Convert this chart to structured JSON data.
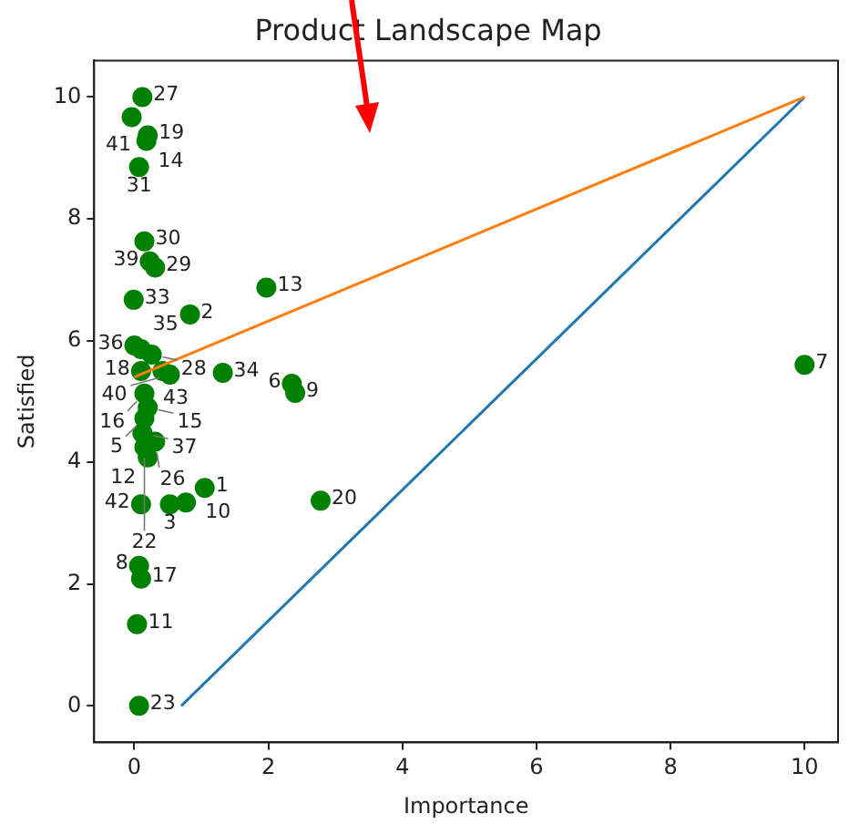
{
  "chart_data": {
    "type": "scatter",
    "title": "Product Landscape Map",
    "xlabel": "Importance",
    "ylabel": "Satisfied",
    "xlim": [
      -0.6,
      10.5
    ],
    "ylim": [
      -0.6,
      10.6
    ],
    "xticks": [
      0,
      2,
      4,
      6,
      8,
      10
    ],
    "yticks": [
      0,
      2,
      4,
      6,
      8,
      10
    ],
    "grid": false,
    "legend": false,
    "marker": "circle",
    "series": [
      {
        "type": "scatter",
        "color": "#008000",
        "x": [
          0.12,
          -0.04,
          0.2,
          0.18,
          0.07,
          0.15,
          0.23,
          0.31,
          -0.01,
          0.83,
          1.97,
          0,
          0.1,
          0.26,
          0.1,
          0.42,
          0.53,
          1.32,
          2.35,
          2.4,
          10,
          0.15,
          0.2,
          0.15,
          0.12,
          0.31,
          0.2,
          0.15,
          0.1,
          0.53,
          0.77,
          1.05,
          2.78,
          0.07,
          0.1,
          0.04,
          0.07
        ],
        "values": [
          10.0,
          9.67,
          9.37,
          9.28,
          8.85,
          7.63,
          7.3,
          7.2,
          6.67,
          6.43,
          6.87,
          5.92,
          5.86,
          5.77,
          5.5,
          5.5,
          5.44,
          5.47,
          5.29,
          5.14,
          5.6,
          5.13,
          4.9,
          4.72,
          4.48,
          4.34,
          4.08,
          4.25,
          3.31,
          3.31,
          3.34,
          3.58,
          3.37,
          2.3,
          2.09,
          1.34,
          0.0
        ]
      },
      {
        "type": "line",
        "color": "#ff7f0e",
        "marker": "none",
        "x": [
          0,
          10
        ],
        "values": [
          5.4,
          10
        ]
      },
      {
        "type": "line",
        "color": "#1f77b4",
        "marker": "none",
        "x": [
          0.7,
          10
        ],
        "values": [
          0,
          10
        ]
      }
    ],
    "annotations": [
      {
        "text": "27",
        "x": 0.12,
        "y": 10.0
      },
      {
        "text": "41",
        "x": -0.04,
        "y": 9.67
      },
      {
        "text": "19",
        "x": 0.2,
        "y": 9.37
      },
      {
        "text": "14",
        "x": 0.18,
        "y": 9.28
      },
      {
        "text": "31",
        "x": 0.07,
        "y": 8.85
      },
      {
        "text": "30",
        "x": 0.15,
        "y": 7.63
      },
      {
        "text": "39",
        "x": 0.23,
        "y": 7.3
      },
      {
        "text": "29",
        "x": 0.31,
        "y": 7.2
      },
      {
        "text": "33",
        "x": -0.01,
        "y": 6.67
      },
      {
        "text": "2",
        "x": 0.83,
        "y": 6.43
      },
      {
        "text": "13",
        "x": 1.97,
        "y": 6.87
      },
      {
        "text": "36",
        "x": 0,
        "y": 5.92
      },
      {
        "text": "35",
        "x": 0.1,
        "y": 5.86
      },
      {
        "text": "28",
        "x": 0.26,
        "y": 5.77
      },
      {
        "text": "18",
        "x": 0.1,
        "y": 5.5
      },
      {
        "text": "43",
        "x": 0.42,
        "y": 5.5
      },
      {
        "text": "40",
        "x": 0.53,
        "y": 5.44
      },
      {
        "text": "34",
        "x": 1.32,
        "y": 5.47
      },
      {
        "text": "6",
        "x": 2.35,
        "y": 5.29
      },
      {
        "text": "9",
        "x": 2.4,
        "y": 5.14
      },
      {
        "text": "7",
        "x": 10,
        "y": 5.6
      },
      {
        "text": "16",
        "x": 0.15,
        "y": 5.13
      },
      {
        "text": "15",
        "x": 0.2,
        "y": 4.9
      },
      {
        "text": "5",
        "x": 0.15,
        "y": 4.72
      },
      {
        "text": "37",
        "x": 0.12,
        "y": 4.48
      },
      {
        "text": "26",
        "x": 0.31,
        "y": 4.34
      },
      {
        "text": "12",
        "x": 0.2,
        "y": 4.08
      },
      {
        "text": "22",
        "x": 0.15,
        "y": 4.25
      },
      {
        "text": "42",
        "x": 0.1,
        "y": 3.31
      },
      {
        "text": "3",
        "x": 0.53,
        "y": 3.31
      },
      {
        "text": "10",
        "x": 0.77,
        "y": 3.34
      },
      {
        "text": "1",
        "x": 1.05,
        "y": 3.58
      },
      {
        "text": "20",
        "x": 2.78,
        "y": 3.37
      },
      {
        "text": "8",
        "x": 0.07,
        "y": 2.3
      },
      {
        "text": "17",
        "x": 0.1,
        "y": 2.09
      },
      {
        "text": "11",
        "x": 0.04,
        "y": 1.34
      },
      {
        "text": "23",
        "x": 0.07,
        "y": 0.0
      }
    ]
  }
}
